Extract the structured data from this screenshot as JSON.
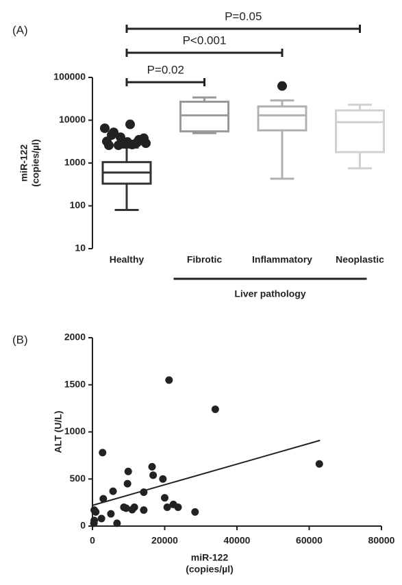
{
  "chart_data": [
    {
      "type": "box",
      "panel": "(A)",
      "ylabel": [
        "miR-122",
        "(copies/µl)"
      ],
      "yscale": "log",
      "ylim": [
        10,
        100000
      ],
      "yticks": [
        10,
        100,
        1000,
        10000,
        100000
      ],
      "boxes": [
        {
          "name": "Healthy",
          "color": "#333333",
          "whisker_low": 80,
          "q1": 330,
          "median": 600,
          "q3": 1050,
          "whisker_high": 2300,
          "outliers": [
            6500,
            8000,
            4500,
            3000,
            2600,
            3800,
            2800,
            3200,
            2700,
            5200,
            3500,
            4000,
            2900,
            3100,
            2600
          ]
        },
        {
          "name": "Fibrotic",
          "color": "#999999",
          "whisker_low": 5000,
          "q1": 5500,
          "median": 13000,
          "q3": 27000,
          "whisker_high": 34000,
          "outliers": []
        },
        {
          "name": "Inflammatory",
          "color": "#b0b0b0",
          "whisker_low": 430,
          "q1": 5800,
          "median": 13000,
          "q3": 21000,
          "whisker_high": 29000,
          "outliers": [
            63000
          ]
        },
        {
          "name": "Neoplastic",
          "color": "#d0d0d0",
          "whisker_low": 750,
          "q1": 1800,
          "median": 9000,
          "q3": 17000,
          "whisker_high": 23000,
          "outliers": []
        }
      ],
      "comparisons": [
        {
          "text": "P=0.02",
          "from": "Healthy",
          "to": "Fibrotic"
        },
        {
          "text": "P<0.001",
          "from": "Healthy",
          "to": "Inflammatory"
        },
        {
          "text": "P=0.05",
          "from": "Healthy",
          "to": "Neoplastic"
        }
      ],
      "group": {
        "label": "Liver pathology",
        "from": "Fibrotic",
        "to": "Neoplastic"
      }
    },
    {
      "type": "scatter",
      "panel": "(B)",
      "xlabel": [
        "miR-122",
        "(copies/µl)"
      ],
      "ylabel": "ALT (U/L)",
      "xlim": [
        0,
        80000
      ],
      "xticks": [
        0,
        20000,
        40000,
        60000,
        80000
      ],
      "ylim": [
        0,
        2000
      ],
      "yticks": [
        0,
        500,
        1000,
        1500,
        2000
      ],
      "color": "#222222",
      "x": [
        400,
        500,
        900,
        500,
        2500,
        3000,
        2800,
        5100,
        5700,
        6800,
        8700,
        9300,
        9700,
        9900,
        11000,
        11600,
        14200,
        14200,
        16500,
        16800,
        19500,
        20000,
        20700,
        22400,
        23700,
        21200,
        28400,
        34000,
        62800
      ],
      "y": [
        30,
        60,
        150,
        170,
        80,
        290,
        780,
        130,
        370,
        30,
        200,
        190,
        450,
        580,
        175,
        200,
        360,
        170,
        630,
        540,
        500,
        300,
        200,
        230,
        200,
        1550,
        150,
        1240,
        660
      ],
      "fit": {
        "x": [
          0,
          63000
        ],
        "y": [
          220,
          910
        ]
      }
    }
  ]
}
